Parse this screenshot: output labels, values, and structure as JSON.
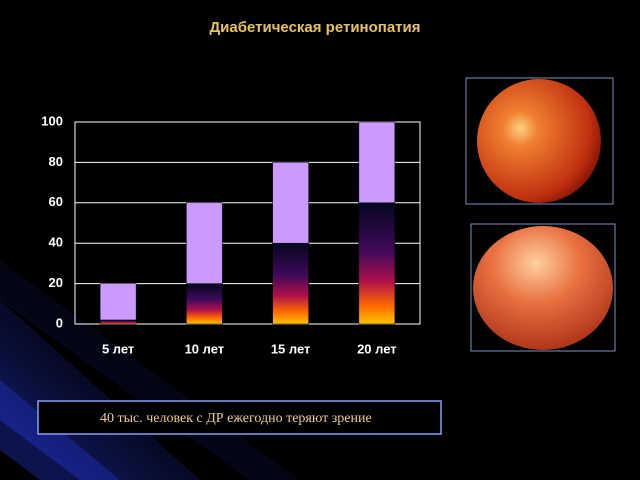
{
  "chart_data": {
    "type": "stacked_bar",
    "title": "Диабетическая  ретинопатия",
    "categories": [
      "5 лет",
      "10 лет",
      "15 лет",
      "20 лет"
    ],
    "series": [
      {
        "color": "gradient",
        "values": [
          2,
          20,
          40,
          60
        ]
      },
      {
        "color": "#cc99ff",
        "values": [
          18,
          40,
          40,
          40
        ]
      }
    ],
    "ylim": [
      0,
      100
    ],
    "yticks": [
      0,
      20,
      40,
      60,
      80,
      100
    ],
    "grid": true,
    "caption": "40 тыс. человек  с ДР  ежегодно теряют зрение"
  }
}
